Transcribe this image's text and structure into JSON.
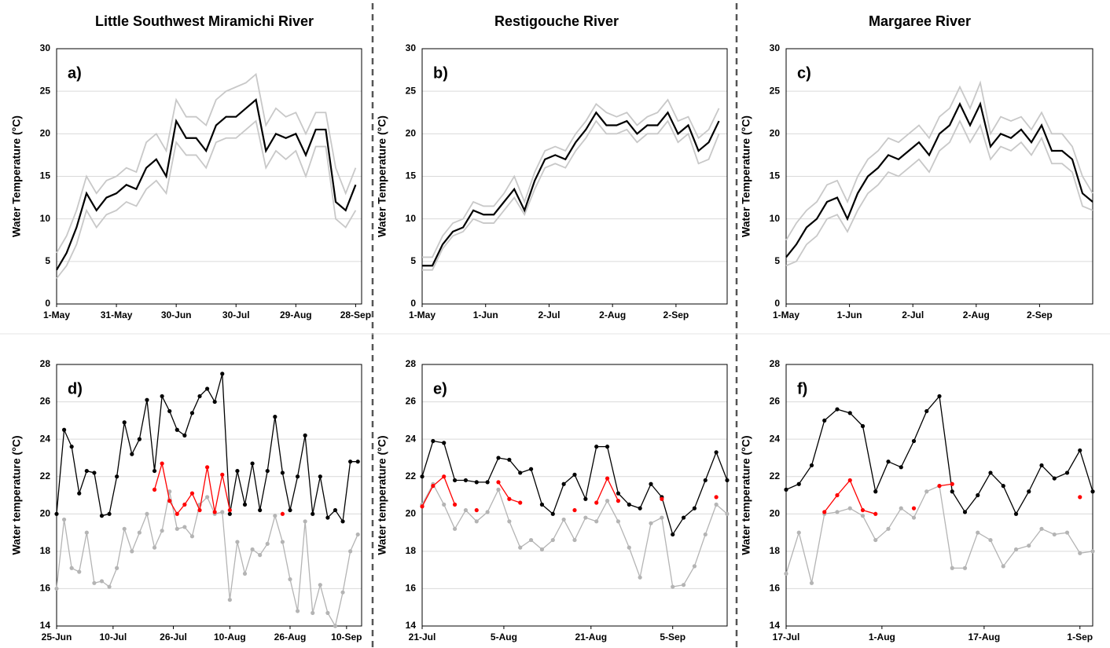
{
  "chart_data": [
    {
      "type": "line",
      "title": "Little Southwest Miramichi River",
      "annotation": "a)",
      "ylabel": "Water Temperature (°C)",
      "grid": true,
      "markers": false,
      "xlim": [
        0,
        153
      ],
      "ylim": [
        0,
        30
      ],
      "yticks": [
        0,
        5,
        10,
        15,
        20,
        25,
        30
      ],
      "xticks": [
        {
          "value": 0,
          "label": "1-May"
        },
        {
          "value": 30,
          "label": "31-May"
        },
        {
          "value": 60,
          "label": "30-Jun"
        },
        {
          "value": 90,
          "label": "30-Jul"
        },
        {
          "value": 120,
          "label": "29-Aug"
        },
        {
          "value": 150,
          "label": "28-Sep"
        }
      ],
      "x": [
        0,
        5,
        10,
        15,
        20,
        25,
        30,
        35,
        40,
        45,
        50,
        55,
        60,
        65,
        70,
        75,
        80,
        85,
        90,
        95,
        100,
        105,
        110,
        115,
        120,
        125,
        130,
        135,
        140,
        145,
        150
      ],
      "series": [
        {
          "color": "#c8c8c8",
          "values": [
            6,
            8,
            11,
            15,
            13,
            14.5,
            15,
            16,
            15.5,
            19,
            20,
            18,
            24,
            22,
            22,
            21,
            24,
            25,
            25.5,
            26,
            27,
            21,
            23,
            22,
            22.5,
            20,
            22.5,
            22.5,
            16,
            13,
            16
          ]
        },
        {
          "color": "#c8c8c8",
          "values": [
            3,
            4.5,
            7,
            11,
            9,
            10.5,
            11,
            12,
            11.5,
            13.5,
            14.5,
            13,
            19,
            17.5,
            17.5,
            16,
            19,
            19.5,
            19.5,
            20.5,
            21.5,
            16,
            18,
            17,
            18,
            15,
            18.5,
            18.5,
            10,
            9,
            11
          ]
        },
        {
          "color": "#000000",
          "values": [
            4,
            6,
            9,
            13,
            11,
            12.5,
            13,
            14,
            13.5,
            16,
            17,
            15,
            21.5,
            19.5,
            19.5,
            18,
            21,
            22,
            22,
            23,
            24,
            18,
            20,
            19.5,
            20,
            17.5,
            20.5,
            20.5,
            12,
            11,
            14
          ]
        }
      ]
    },
    {
      "type": "line",
      "title": "Restigouche River",
      "annotation": "b)",
      "ylabel": "Water Temperature (°C)",
      "grid": true,
      "markers": false,
      "xlim": [
        0,
        149
      ],
      "ylim": [
        0,
        30
      ],
      "yticks": [
        0,
        5,
        10,
        15,
        20,
        25,
        30
      ],
      "xticks": [
        {
          "value": 0,
          "label": "1-May"
        },
        {
          "value": 31,
          "label": "1-Jun"
        },
        {
          "value": 62,
          "label": "2-Jul"
        },
        {
          "value": 93,
          "label": "2-Aug"
        },
        {
          "value": 124,
          "label": "2-Sep"
        }
      ],
      "x": [
        0,
        5,
        10,
        15,
        20,
        25,
        30,
        35,
        40,
        45,
        50,
        55,
        60,
        65,
        70,
        75,
        80,
        85,
        90,
        95,
        100,
        105,
        110,
        115,
        120,
        125,
        130,
        135,
        140,
        145
      ],
      "series": [
        {
          "color": "#c8c8c8",
          "values": [
            5.5,
            5.5,
            8,
            9.5,
            10,
            12,
            11.5,
            11.5,
            13,
            15,
            12,
            15.5,
            18,
            18.5,
            18,
            20,
            21.5,
            23.5,
            22.5,
            22,
            22.5,
            21,
            22,
            22.5,
            24,
            21.5,
            22,
            19.5,
            20.5,
            23
          ]
        },
        {
          "color": "#c8c8c8",
          "values": [
            4,
            4,
            6.5,
            8,
            8.5,
            10,
            9.5,
            9.5,
            11,
            12.5,
            10.5,
            13.5,
            16,
            16.5,
            16,
            18,
            19.5,
            21.5,
            20,
            20,
            20.5,
            19,
            20,
            20,
            21.5,
            19,
            20,
            16.5,
            17,
            20
          ]
        },
        {
          "color": "#000000",
          "values": [
            4.5,
            4.5,
            7,
            8.5,
            9,
            11,
            10.5,
            10.5,
            12,
            13.5,
            11,
            14.5,
            17,
            17.5,
            17,
            19,
            20.5,
            22.5,
            21,
            21,
            21.5,
            20,
            21,
            21,
            22.5,
            20,
            21,
            18,
            19,
            21.5
          ]
        }
      ]
    },
    {
      "type": "line",
      "title": "Margaree River",
      "annotation": "c)",
      "ylabel": "Water Temperature (°C)",
      "grid": true,
      "markers": false,
      "xlim": [
        0,
        150
      ],
      "ylim": [
        0,
        30
      ],
      "yticks": [
        0,
        5,
        10,
        15,
        20,
        25,
        30
      ],
      "xticks": [
        {
          "value": 0,
          "label": "1-May"
        },
        {
          "value": 31,
          "label": "1-Jun"
        },
        {
          "value": 62,
          "label": "2-Jul"
        },
        {
          "value": 93,
          "label": "2-Aug"
        },
        {
          "value": 124,
          "label": "2-Sep"
        }
      ],
      "x": [
        0,
        5,
        10,
        15,
        20,
        25,
        30,
        35,
        40,
        45,
        50,
        55,
        60,
        65,
        70,
        75,
        80,
        85,
        90,
        95,
        100,
        105,
        110,
        115,
        120,
        125,
        130,
        135,
        140,
        145,
        150
      ],
      "series": [
        {
          "color": "#c8c8c8",
          "values": [
            7.5,
            9.5,
            11,
            12,
            14,
            14.5,
            12,
            15,
            17,
            18,
            19.5,
            19,
            20,
            21,
            19.5,
            22,
            23,
            25.5,
            23,
            26,
            20,
            22,
            21.5,
            22,
            20.5,
            22.5,
            20,
            20,
            18.5,
            15,
            13
          ]
        },
        {
          "color": "#c8c8c8",
          "values": [
            4.5,
            5,
            7,
            8,
            10,
            10.5,
            8.5,
            11,
            13,
            14,
            15.5,
            15,
            16,
            17,
            15.5,
            18,
            19,
            21.5,
            19,
            21,
            17,
            18.5,
            18,
            19,
            17.5,
            19.5,
            16.5,
            16.5,
            15.5,
            11.5,
            11
          ]
        },
        {
          "color": "#000000",
          "values": [
            5.5,
            7,
            9,
            10,
            12,
            12.5,
            10,
            13,
            15,
            16,
            17.5,
            17,
            18,
            19,
            17.5,
            20,
            21,
            23.5,
            21,
            23.5,
            18.5,
            20,
            19.5,
            20.5,
            19,
            21,
            18,
            18,
            17,
            13,
            12
          ]
        }
      ]
    },
    {
      "type": "line",
      "annotation": "d)",
      "ylabel": "Water temperature (°C)",
      "grid": true,
      "markers": true,
      "xlim": [
        0,
        81
      ],
      "ylim": [
        14,
        28
      ],
      "yticks": [
        14,
        16,
        18,
        20,
        22,
        24,
        26,
        28
      ],
      "xticks": [
        {
          "value": 0,
          "label": "25-Jun"
        },
        {
          "value": 15,
          "label": "10-Jul"
        },
        {
          "value": 31,
          "label": "26-Jul"
        },
        {
          "value": 46,
          "label": "10-Aug"
        },
        {
          "value": 62,
          "label": "26-Aug"
        },
        {
          "value": 77,
          "label": "10-Sep"
        }
      ],
      "x": [
        0,
        2,
        4,
        6,
        8,
        10,
        12,
        14,
        16,
        18,
        20,
        22,
        24,
        26,
        28,
        30,
        32,
        34,
        36,
        38,
        40,
        42,
        44,
        46,
        48,
        50,
        52,
        54,
        56,
        58,
        60,
        62,
        64,
        66,
        68,
        70,
        72,
        74,
        76,
        78,
        80
      ],
      "series": [
        {
          "color": "#b4b4b4",
          "values": [
            16,
            19.7,
            17.1,
            16.9,
            19,
            16.3,
            16.4,
            16.1,
            17.1,
            19.2,
            18,
            19,
            20,
            18.2,
            19.1,
            21.2,
            19.2,
            19.3,
            18.8,
            20.5,
            20.9,
            20,
            20.1,
            15.4,
            18.5,
            16.8,
            18.1,
            17.8,
            18.4,
            19.9,
            18.5,
            16.5,
            14.8,
            19.6,
            14.7,
            16.2,
            14.7,
            14,
            15.8,
            18,
            18.9
          ]
        },
        {
          "color": "#000000",
          "values": [
            20,
            24.5,
            23.6,
            21.1,
            22.3,
            22.2,
            19.9,
            20,
            22,
            24.9,
            23.2,
            24,
            26.1,
            22.3,
            26.3,
            25.5,
            24.5,
            24.2,
            25.4,
            26.3,
            26.7,
            26,
            27.5,
            20,
            22.3,
            20.5,
            22.7,
            20.2,
            22.3,
            25.2,
            22.2,
            20.2,
            22,
            24.2,
            20,
            22,
            19.8,
            20.2,
            19.6,
            22.8,
            22.8
          ]
        },
        {
          "color": "#ff0000",
          "values": [
            null,
            null,
            null,
            null,
            null,
            null,
            null,
            null,
            null,
            null,
            null,
            null,
            null,
            21.3,
            22.7,
            20.7,
            20,
            20.5,
            21.1,
            20.2,
            22.5,
            20.1,
            22.1,
            20.2,
            null,
            null,
            null,
            null,
            null,
            null,
            20,
            null,
            null,
            null,
            null,
            null,
            null,
            null,
            null,
            null,
            null
          ]
        }
      ]
    },
    {
      "type": "line",
      "annotation": "e)",
      "ylabel": "Water temperature (°C)",
      "grid": true,
      "markers": true,
      "xlim": [
        0,
        56
      ],
      "ylim": [
        14,
        28
      ],
      "yticks": [
        14,
        16,
        18,
        20,
        22,
        24,
        26,
        28
      ],
      "xticks": [
        {
          "value": 0,
          "label": "21-Jul"
        },
        {
          "value": 15,
          "label": "5-Aug"
        },
        {
          "value": 31,
          "label": "21-Aug"
        },
        {
          "value": 46,
          "label": "5-Sep"
        }
      ],
      "x": [
        0,
        2,
        4,
        6,
        8,
        10,
        12,
        14,
        16,
        18,
        20,
        22,
        24,
        26,
        28,
        30,
        32,
        34,
        36,
        38,
        40,
        42,
        44,
        46,
        48,
        50,
        52,
        54,
        56
      ],
      "series": [
        {
          "color": "#b4b4b4",
          "values": [
            20.5,
            21.6,
            20.5,
            19.2,
            20.2,
            19.6,
            20.1,
            21.3,
            19.6,
            18.2,
            18.6,
            18.1,
            18.6,
            19.7,
            18.6,
            19.8,
            19.6,
            20.7,
            19.6,
            18.2,
            16.6,
            19.5,
            19.8,
            16.1,
            16.2,
            17.2,
            18.9,
            20.5,
            20
          ]
        },
        {
          "color": "#000000",
          "values": [
            22,
            23.9,
            23.8,
            21.8,
            21.8,
            21.7,
            21.7,
            23,
            22.9,
            22.2,
            22.4,
            20.5,
            20,
            21.6,
            22.1,
            20.8,
            23.6,
            23.6,
            21.1,
            20.5,
            20.3,
            21.6,
            20.9,
            18.9,
            19.8,
            20.3,
            21.8,
            23.3,
            21.8
          ]
        },
        {
          "color": "#ff0000",
          "values": [
            20.4,
            21.5,
            22,
            20.5,
            null,
            20.2,
            null,
            21.7,
            20.8,
            20.6,
            null,
            null,
            null,
            null,
            20.2,
            null,
            20.6,
            21.9,
            20.7,
            null,
            null,
            null,
            20.8,
            null,
            null,
            null,
            null,
            20.9,
            null
          ]
        }
      ]
    },
    {
      "type": "line",
      "annotation": "f)",
      "ylabel": "Water temperature (°C)",
      "grid": true,
      "markers": true,
      "xlim": [
        0,
        48
      ],
      "ylim": [
        14,
        28
      ],
      "yticks": [
        14,
        16,
        18,
        20,
        22,
        24,
        26,
        28
      ],
      "xticks": [
        {
          "value": 0,
          "label": "17-Jul"
        },
        {
          "value": 15,
          "label": "1-Aug"
        },
        {
          "value": 31,
          "label": "17-Aug"
        },
        {
          "value": 46,
          "label": "1-Sep"
        }
      ],
      "x": [
        0,
        2,
        4,
        6,
        8,
        10,
        12,
        14,
        16,
        18,
        20,
        22,
        24,
        26,
        28,
        30,
        32,
        34,
        36,
        38,
        40,
        42,
        44,
        46,
        48
      ],
      "series": [
        {
          "color": "#b4b4b4",
          "values": [
            16.8,
            19,
            16.3,
            20,
            20.1,
            20.3,
            19.9,
            18.6,
            19.2,
            20.3,
            19.8,
            21.2,
            21.5,
            17.1,
            17.1,
            19,
            18.6,
            17.2,
            18.1,
            18.3,
            19.2,
            18.9,
            19,
            17.9,
            18
          ]
        },
        {
          "color": "#000000",
          "values": [
            21.3,
            21.6,
            22.6,
            25,
            25.6,
            25.4,
            24.7,
            21.2,
            22.8,
            22.5,
            23.9,
            25.5,
            26.3,
            21.2,
            20.1,
            21,
            22.2,
            21.5,
            20,
            21.2,
            22.6,
            21.9,
            22.2,
            23.4,
            21.2
          ]
        },
        {
          "color": "#ff0000",
          "values": [
            null,
            null,
            null,
            20.1,
            21,
            21.8,
            20.2,
            20,
            null,
            null,
            20.3,
            null,
            21.5,
            21.6,
            null,
            null,
            null,
            null,
            null,
            null,
            null,
            null,
            null,
            20.9,
            null
          ]
        }
      ]
    }
  ]
}
